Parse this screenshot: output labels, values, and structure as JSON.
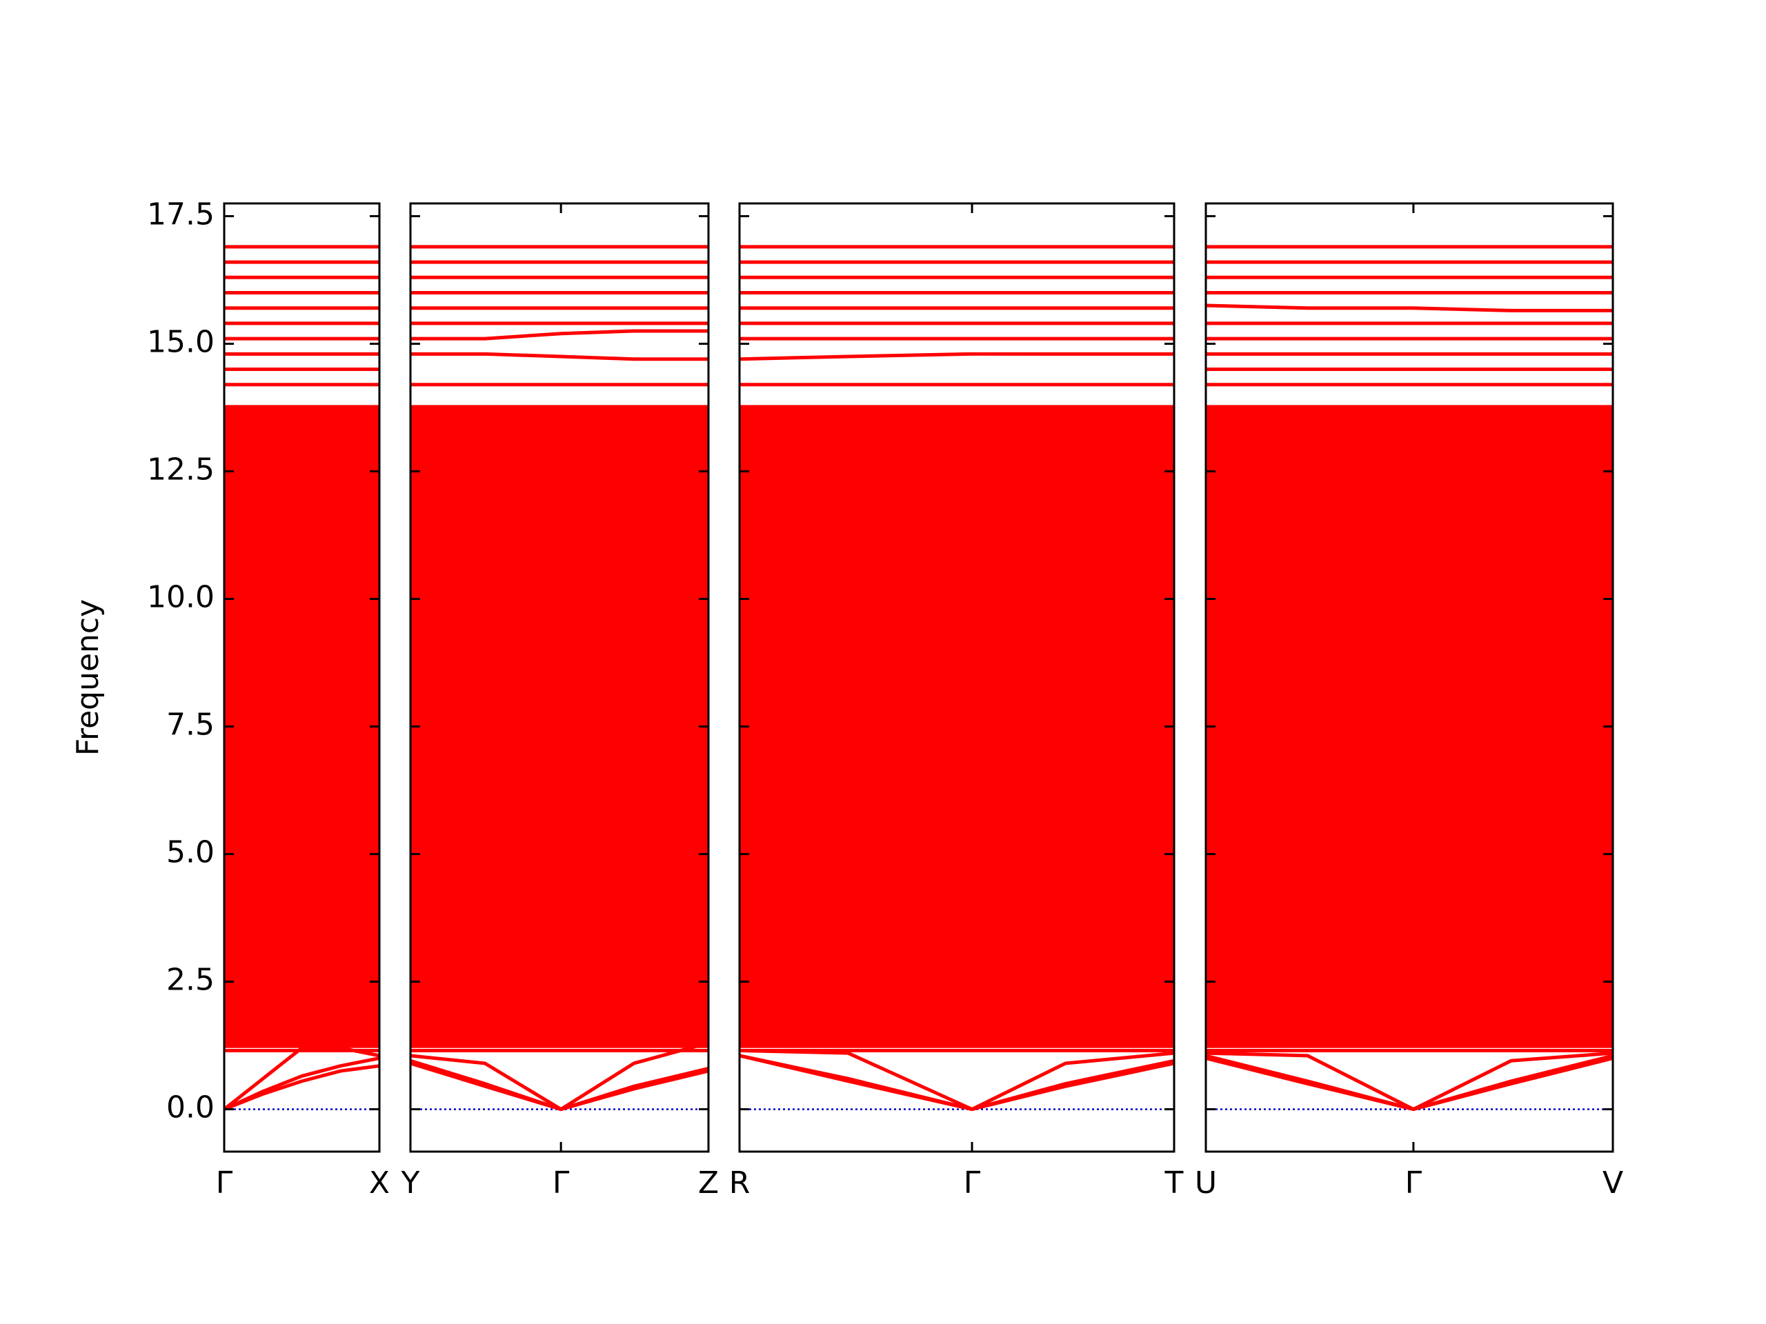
{
  "chart_data": [
    {
      "type": "line",
      "ylabel": "Frequency",
      "color": "#ff0000",
      "ylim": [
        -0.83,
        17.75
      ],
      "yticks": [
        {
          "value": 0,
          "label": "0.0"
        },
        2.5,
        {
          "value": 5,
          "label": "5.0"
        },
        7.5,
        {
          "value": 10,
          "label": "10.0"
        },
        12.5,
        {
          "value": 15,
          "label": "15.0"
        },
        17.5
      ],
      "xlim": [
        0,
        1
      ],
      "xticks": [
        {
          "value": 0,
          "label": "Γ"
        },
        {
          "value": 1,
          "label": "X"
        }
      ],
      "x": [
        0,
        0.25,
        0.5,
        0.75,
        1
      ],
      "zero_line": {
        "value": 0,
        "color": "#0000cc"
      },
      "dense_bands": {
        "low": [
          1.2,
          1.2,
          1.2,
          1.2,
          1.2
        ],
        "high": [
          13.8,
          13.8,
          13.8,
          13.8,
          13.8
        ]
      },
      "series": [
        {
          "values": [
            0,
            0.3,
            0.55,
            0.75,
            0.85
          ]
        },
        {
          "values": [
            0,
            0.35,
            0.65,
            0.85,
            1.0
          ]
        },
        {
          "values": [
            0,
            0.6,
            1.2,
            1.2,
            1.05
          ]
        },
        {
          "values": [
            1.15,
            1.15,
            1.15,
            1.15,
            1.15
          ]
        },
        {
          "values": [
            1.4,
            1.4,
            1.4,
            1.4,
            1.4
          ]
        },
        {
          "values": [
            14.2,
            14.2,
            14.2,
            14.2,
            14.2
          ]
        },
        {
          "values": [
            14.5,
            14.5,
            14.5,
            14.5,
            14.5
          ]
        },
        {
          "values": [
            14.8,
            14.8,
            14.8,
            14.8,
            14.8
          ]
        },
        {
          "values": [
            15.1,
            15.1,
            15.1,
            15.1,
            15.1
          ]
        },
        {
          "values": [
            15.4,
            15.4,
            15.4,
            15.4,
            15.4
          ]
        },
        {
          "values": [
            15.7,
            15.7,
            15.7,
            15.7,
            15.7
          ]
        },
        {
          "values": [
            16.0,
            16.0,
            16.0,
            16.0,
            16.0
          ]
        },
        {
          "values": [
            16.3,
            16.3,
            16.3,
            16.3,
            16.3
          ]
        },
        {
          "values": [
            16.6,
            16.6,
            16.6,
            16.6,
            16.6
          ]
        },
        {
          "values": [
            16.9,
            16.9,
            16.9,
            16.9,
            16.9
          ]
        }
      ]
    },
    {
      "type": "line",
      "color": "#ff0000",
      "ylim": [
        -0.83,
        17.75
      ],
      "yticks": [
        0,
        2.5,
        5,
        7.5,
        10,
        12.5,
        15,
        17.5
      ],
      "xlim": [
        0,
        2
      ],
      "xticks": [
        {
          "value": 0,
          "label": "Y"
        },
        {
          "value": 1.01,
          "label": "Γ"
        },
        {
          "value": 2,
          "label": "Z"
        }
      ],
      "x": [
        0,
        0.5,
        1.01,
        1.5,
        2
      ],
      "zero_line": {
        "value": 0,
        "color": "#0000cc"
      },
      "dense_bands": {
        "low": [
          1.2,
          1.2,
          1.2,
          1.2,
          1.2
        ],
        "high": [
          13.8,
          13.8,
          13.8,
          13.8,
          13.8
        ]
      },
      "series": [
        {
          "values": [
            0.9,
            0.45,
            0,
            0.4,
            0.75
          ]
        },
        {
          "values": [
            0.95,
            0.5,
            0,
            0.45,
            0.8
          ]
        },
        {
          "values": [
            1.05,
            0.9,
            0,
            0.9,
            1.3
          ]
        },
        {
          "values": [
            1.15,
            1.15,
            1.15,
            1.15,
            1.15
          ]
        },
        {
          "values": [
            1.4,
            1.4,
            1.4,
            1.4,
            1.4
          ]
        },
        {
          "values": [
            14.2,
            14.2,
            14.2,
            14.2,
            14.2
          ]
        },
        {
          "values": [
            14.8,
            14.8,
            14.75,
            14.7,
            14.7
          ]
        },
        {
          "values": [
            15.1,
            15.1,
            15.2,
            15.25,
            15.25
          ]
        },
        {
          "values": [
            15.4,
            15.4,
            15.4,
            15.4,
            15.4
          ]
        },
        {
          "values": [
            15.7,
            15.7,
            15.7,
            15.7,
            15.7
          ]
        },
        {
          "values": [
            16.0,
            16.0,
            16.0,
            16.0,
            16.0
          ]
        },
        {
          "values": [
            16.3,
            16.3,
            16.3,
            16.3,
            16.3
          ]
        },
        {
          "values": [
            16.6,
            16.6,
            16.6,
            16.6,
            16.6
          ]
        },
        {
          "values": [
            16.9,
            16.9,
            16.9,
            16.9,
            16.9
          ]
        }
      ]
    },
    {
      "type": "line",
      "color": "#ff0000",
      "ylim": [
        -0.83,
        17.75
      ],
      "yticks": [
        0,
        2.5,
        5,
        7.5,
        10,
        12.5,
        15,
        17.5
      ],
      "xlim": [
        0,
        2
      ],
      "xticks": [
        {
          "value": 0,
          "label": "R"
        },
        {
          "value": 1.07,
          "label": "Γ"
        },
        {
          "value": 2,
          "label": "T"
        }
      ],
      "x": [
        0,
        0.5,
        1.07,
        1.5,
        2
      ],
      "zero_line": {
        "value": 0,
        "color": "#0000cc"
      },
      "dense_bands": {
        "low": [
          1.2,
          1.2,
          1.2,
          1.2,
          1.2
        ],
        "high": [
          13.8,
          13.8,
          13.8,
          13.8,
          13.8
        ]
      },
      "series": [
        {
          "values": [
            1.05,
            0.55,
            0,
            0.45,
            0.9
          ]
        },
        {
          "values": [
            1.05,
            0.6,
            0,
            0.5,
            0.95
          ]
        },
        {
          "values": [
            1.15,
            1.1,
            0,
            0.9,
            1.1
          ]
        },
        {
          "values": [
            1.15,
            1.15,
            1.15,
            1.15,
            1.15
          ]
        },
        {
          "values": [
            1.4,
            1.4,
            1.4,
            1.4,
            1.4
          ]
        },
        {
          "values": [
            14.2,
            14.2,
            14.2,
            14.2,
            14.2
          ]
        },
        {
          "values": [
            14.7,
            14.75,
            14.8,
            14.8,
            14.8
          ]
        },
        {
          "values": [
            15.1,
            15.1,
            15.1,
            15.1,
            15.1
          ]
        },
        {
          "values": [
            15.4,
            15.4,
            15.4,
            15.4,
            15.4
          ]
        },
        {
          "values": [
            15.7,
            15.7,
            15.7,
            15.7,
            15.7
          ]
        },
        {
          "values": [
            16.0,
            16.0,
            16.0,
            16.0,
            16.0
          ]
        },
        {
          "values": [
            16.3,
            16.3,
            16.3,
            16.3,
            16.3
          ]
        },
        {
          "values": [
            16.6,
            16.6,
            16.6,
            16.6,
            16.6
          ]
        },
        {
          "values": [
            16.9,
            16.9,
            16.9,
            16.9,
            16.9
          ]
        }
      ]
    },
    {
      "type": "line",
      "color": "#ff0000",
      "ylim": [
        -0.83,
        17.75
      ],
      "yticks": [
        0,
        2.5,
        5,
        7.5,
        10,
        12.5,
        15,
        17.5
      ],
      "xlim": [
        0,
        2
      ],
      "xticks": [
        {
          "value": 0,
          "label": "U"
        },
        {
          "value": 1.02,
          "label": "Γ"
        },
        {
          "value": 2,
          "label": "V"
        }
      ],
      "x": [
        0,
        0.5,
        1.02,
        1.5,
        2
      ],
      "zero_line": {
        "value": 0,
        "color": "#0000cc"
      },
      "dense_bands": {
        "low": [
          1.2,
          1.2,
          1.2,
          1.2,
          1.2
        ],
        "high": [
          13.8,
          13.8,
          13.8,
          13.8,
          13.8
        ]
      },
      "series": [
        {
          "values": [
            1.0,
            0.5,
            0,
            0.5,
            1.0
          ]
        },
        {
          "values": [
            1.05,
            0.55,
            0,
            0.55,
            1.05
          ]
        },
        {
          "values": [
            1.1,
            1.05,
            0,
            0.95,
            1.1
          ]
        },
        {
          "values": [
            1.15,
            1.15,
            1.15,
            1.15,
            1.15
          ]
        },
        {
          "values": [
            1.4,
            1.4,
            1.4,
            1.4,
            1.4
          ]
        },
        {
          "values": [
            14.2,
            14.2,
            14.2,
            14.2,
            14.2
          ]
        },
        {
          "values": [
            14.5,
            14.5,
            14.5,
            14.5,
            14.5
          ]
        },
        {
          "values": [
            14.8,
            14.8,
            14.8,
            14.8,
            14.8
          ]
        },
        {
          "values": [
            15.1,
            15.1,
            15.1,
            15.1,
            15.1
          ]
        },
        {
          "values": [
            15.4,
            15.4,
            15.4,
            15.4,
            15.4
          ]
        },
        {
          "values": [
            15.75,
            15.7,
            15.7,
            15.65,
            15.65
          ]
        },
        {
          "values": [
            16.0,
            16.0,
            16.0,
            16.0,
            16.0
          ]
        },
        {
          "values": [
            16.3,
            16.3,
            16.3,
            16.3,
            16.3
          ]
        },
        {
          "values": [
            16.6,
            16.6,
            16.6,
            16.6,
            16.6
          ]
        },
        {
          "values": [
            16.9,
            16.9,
            16.9,
            16.9,
            16.9
          ]
        }
      ]
    }
  ]
}
